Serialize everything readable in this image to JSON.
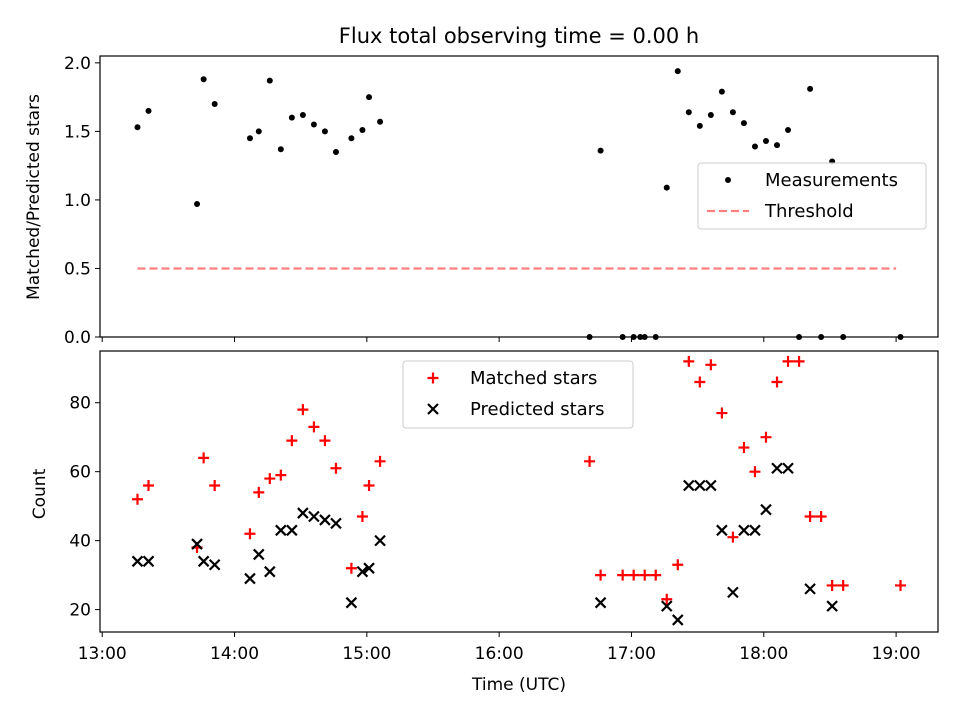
{
  "chart_data": [
    {
      "type": "scatter",
      "title": "Flux total observing time = 0.00 h",
      "xlabel": "",
      "ylabel": "Matched/Predicted stars",
      "xlim": [
        "12:59",
        "19:19"
      ],
      "ylim": [
        0,
        2.05
      ],
      "yticks": [
        0.0,
        0.5,
        1.0,
        1.5,
        2.0
      ],
      "ytick_labels": [
        "0.0",
        "0.5",
        "1.0",
        "1.5",
        "2.0"
      ],
      "legend_position": "center-right",
      "series": [
        {
          "name": "Measurements",
          "marker": "dot",
          "color": "#000000",
          "points": [
            [
              "13:16",
              1.53
            ],
            [
              "13:21",
              1.65
            ],
            [
              "13:43",
              0.97
            ],
            [
              "13:46",
              1.88
            ],
            [
              "13:51",
              1.7
            ],
            [
              "14:07",
              1.45
            ],
            [
              "14:11",
              1.5
            ],
            [
              "14:16",
              1.87
            ],
            [
              "14:21",
              1.37
            ],
            [
              "14:26",
              1.6
            ],
            [
              "14:31",
              1.62
            ],
            [
              "14:36",
              1.55
            ],
            [
              "14:41",
              1.5
            ],
            [
              "14:46",
              1.35
            ],
            [
              "14:53",
              1.45
            ],
            [
              "14:58",
              1.51
            ],
            [
              "15:01",
              1.75
            ],
            [
              "15:06",
              1.57
            ],
            [
              "16:41",
              0.0
            ],
            [
              "16:46",
              1.36
            ],
            [
              "16:56",
              0.0
            ],
            [
              "17:01",
              0.0
            ],
            [
              "17:04",
              0.0
            ],
            [
              "17:06",
              0.0
            ],
            [
              "17:11",
              0.0
            ],
            [
              "17:16",
              1.09
            ],
            [
              "17:21",
              1.94
            ],
            [
              "17:26",
              1.64
            ],
            [
              "17:31",
              1.54
            ],
            [
              "17:36",
              1.62
            ],
            [
              "17:41",
              1.79
            ],
            [
              "17:46",
              1.64
            ],
            [
              "17:51",
              1.56
            ],
            [
              "17:56",
              1.39
            ],
            [
              "18:01",
              1.43
            ],
            [
              "18:06",
              1.4
            ],
            [
              "18:11",
              1.51
            ],
            [
              "18:16",
              0.0
            ],
            [
              "18:21",
              1.81
            ],
            [
              "18:26",
              0.0
            ],
            [
              "18:31",
              1.28
            ],
            [
              "18:36",
              0.0
            ],
            [
              "19:02",
              0.0
            ]
          ]
        },
        {
          "name": "Threshold",
          "marker": "dashed-line",
          "color": "#ff7f7f",
          "points": [
            [
              "13:16",
              0.5
            ],
            [
              "19:00",
              0.5
            ]
          ]
        }
      ]
    },
    {
      "type": "scatter",
      "title": "",
      "xlabel": "Time (UTC)",
      "ylabel": "Count",
      "xlim": [
        "12:59",
        "19:19"
      ],
      "ylim": [
        13.5,
        95
      ],
      "xticks": [
        "13:00",
        "14:00",
        "15:00",
        "16:00",
        "17:00",
        "18:00",
        "19:00"
      ],
      "yticks": [
        20,
        40,
        60,
        80
      ],
      "ytick_labels": [
        "20",
        "40",
        "60",
        "80"
      ],
      "legend_position": "top-center",
      "series": [
        {
          "name": "Matched stars",
          "marker": "plus",
          "color": "#ff0000",
          "points": [
            [
              "13:16",
              52
            ],
            [
              "13:21",
              56
            ],
            [
              "13:43",
              38
            ],
            [
              "13:46",
              64
            ],
            [
              "13:51",
              56
            ],
            [
              "14:07",
              42
            ],
            [
              "14:11",
              54
            ],
            [
              "14:16",
              58
            ],
            [
              "14:21",
              59
            ],
            [
              "14:26",
              69
            ],
            [
              "14:31",
              78
            ],
            [
              "14:36",
              73
            ],
            [
              "14:41",
              69
            ],
            [
              "14:46",
              61
            ],
            [
              "14:53",
              32
            ],
            [
              "14:58",
              47
            ],
            [
              "15:01",
              56
            ],
            [
              "15:06",
              63
            ],
            [
              "16:41",
              63
            ],
            [
              "16:46",
              30
            ],
            [
              "16:56",
              30
            ],
            [
              "17:01",
              30
            ],
            [
              "17:06",
              30
            ],
            [
              "17:11",
              30
            ],
            [
              "17:16",
              23
            ],
            [
              "17:21",
              33
            ],
            [
              "17:26",
              92
            ],
            [
              "17:31",
              86
            ],
            [
              "17:36",
              91
            ],
            [
              "17:41",
              77
            ],
            [
              "17:46",
              41
            ],
            [
              "17:51",
              67
            ],
            [
              "17:56",
              60
            ],
            [
              "18:01",
              70
            ],
            [
              "18:06",
              86
            ],
            [
              "18:11",
              92
            ],
            [
              "18:16",
              92
            ],
            [
              "18:21",
              47
            ],
            [
              "18:26",
              47
            ],
            [
              "18:31",
              27
            ],
            [
              "18:36",
              27
            ],
            [
              "19:02",
              27
            ]
          ]
        },
        {
          "name": "Predicted stars",
          "marker": "x",
          "color": "#000000",
          "points": [
            [
              "13:16",
              34
            ],
            [
              "13:21",
              34
            ],
            [
              "13:43",
              39
            ],
            [
              "13:46",
              34
            ],
            [
              "13:51",
              33
            ],
            [
              "14:07",
              29
            ],
            [
              "14:11",
              36
            ],
            [
              "14:16",
              31
            ],
            [
              "14:21",
              43
            ],
            [
              "14:26",
              43
            ],
            [
              "14:31",
              48
            ],
            [
              "14:36",
              47
            ],
            [
              "14:41",
              46
            ],
            [
              "14:46",
              45
            ],
            [
              "14:53",
              22
            ],
            [
              "14:58",
              31
            ],
            [
              "15:01",
              32
            ],
            [
              "15:06",
              40
            ],
            [
              "16:46",
              22
            ],
            [
              "17:16",
              21
            ],
            [
              "17:21",
              17
            ],
            [
              "17:26",
              56
            ],
            [
              "17:31",
              56
            ],
            [
              "17:36",
              56
            ],
            [
              "17:41",
              43
            ],
            [
              "17:46",
              25
            ],
            [
              "17:51",
              43
            ],
            [
              "17:56",
              43
            ],
            [
              "18:01",
              49
            ],
            [
              "18:06",
              61
            ],
            [
              "18:11",
              61
            ],
            [
              "18:21",
              26
            ],
            [
              "18:31",
              21
            ]
          ]
        }
      ]
    }
  ]
}
